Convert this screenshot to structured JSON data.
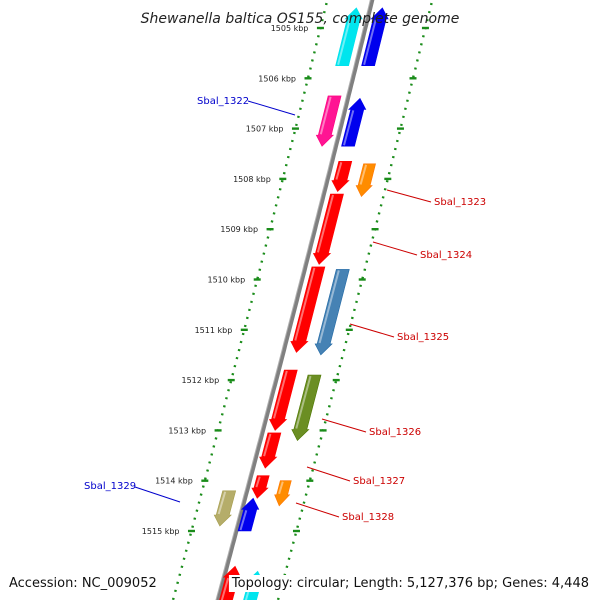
{
  "title": "Shewanella baltica OS155, complete genome",
  "footer": {
    "accession": "Accession: NC_009052",
    "info": "Topology: circular; Length: 5,127,376 bp; Genes: 4,448"
  },
  "ticks": [
    {
      "label": "1505 kbp"
    },
    {
      "label": "1506 kbp"
    },
    {
      "label": "1507 kbp"
    },
    {
      "label": "1508 kbp"
    },
    {
      "label": "1509 kbp"
    },
    {
      "label": "1510 kbp"
    },
    {
      "label": "1511 kbp"
    },
    {
      "label": "1512 kbp"
    },
    {
      "label": "1513 kbp"
    },
    {
      "label": "1514 kbp"
    },
    {
      "label": "1515 kbp"
    }
  ],
  "gene_labels": [
    {
      "text": "Sbal_1322",
      "color": "#0000cc"
    },
    {
      "text": "Sbal_1323",
      "color": "#cc0000"
    },
    {
      "text": "Sbal_1324",
      "color": "#cc0000"
    },
    {
      "text": "Sbal_1325",
      "color": "#cc0000"
    },
    {
      "text": "Sbal_1326",
      "color": "#cc0000"
    },
    {
      "text": "Sbal_1327",
      "color": "#cc0000"
    },
    {
      "text": "Sbal_1328",
      "color": "#cc0000"
    },
    {
      "text": "Sbal_1329",
      "color": "#0000cc"
    }
  ],
  "colors": {
    "backbone": "#808080",
    "ring": "#1a8c1a",
    "red": "#ff0000",
    "blue": "#0000ee",
    "orange": "#ff8c00",
    "steel_blue": "#4682b4",
    "olive_green": "#6b8e23",
    "khaki": "#b5ad6a",
    "magenta": "#ff1493",
    "cyan": "#00e5ee"
  }
}
